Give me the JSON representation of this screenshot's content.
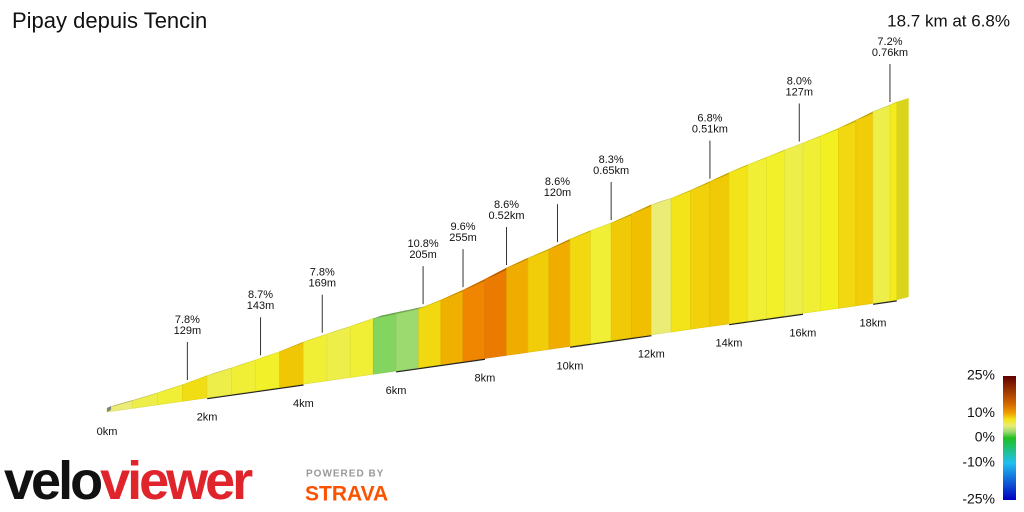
{
  "title": "Pipay depuis Tencin",
  "summary": "18.7 km at 6.8%",
  "chart_data": {
    "type": "profile",
    "distance_km": [
      0,
      0.5,
      1,
      1.5,
      2,
      2.5,
      3,
      3.5,
      4,
      4.5,
      5,
      5.5,
      6,
      6.5,
      7,
      7.5,
      8,
      8.5,
      9,
      9.5,
      10,
      10.5,
      11,
      11.5,
      12,
      12.5,
      13,
      13.5,
      14,
      14.5,
      15,
      15.5,
      16,
      16.5,
      17,
      17.5,
      18,
      18.5,
      18.7
    ],
    "grades": [
      5,
      6,
      6.5,
      7.8,
      6,
      6.5,
      6.8,
      8.7,
      6.5,
      6,
      6.5,
      2,
      2.5,
      8,
      9.5,
      10.8,
      11.5,
      9.6,
      8.5,
      9.6,
      8,
      6.5,
      8.6,
      9,
      5,
      7.5,
      8.3,
      8.6,
      7.5,
      6.5,
      6.8,
      6,
      6.5,
      7,
      8,
      8.5,
      6,
      7.2
    ],
    "xticks": [
      {
        "value": 0,
        "label": "0km"
      },
      {
        "value": 2,
        "label": "2km"
      },
      {
        "value": 4,
        "label": "4km"
      },
      {
        "value": 6,
        "label": "6km"
      },
      {
        "value": 8,
        "label": "8km"
      },
      {
        "value": 10,
        "label": "10km"
      },
      {
        "value": 12,
        "label": "12km"
      },
      {
        "value": 14,
        "label": "14km"
      },
      {
        "value": 16,
        "label": "16km"
      },
      {
        "value": 18,
        "label": "18km"
      }
    ],
    "annotations": [
      {
        "km": 1.6,
        "grade": "7.8%",
        "length": "129m"
      },
      {
        "km": 3.1,
        "grade": "8.7%",
        "length": "143m"
      },
      {
        "km": 4.4,
        "grade": "7.8%",
        "length": "169m"
      },
      {
        "km": 6.6,
        "grade": "10.8%",
        "length": "205m"
      },
      {
        "km": 7.5,
        "grade": "9.6%",
        "length": "255m"
      },
      {
        "km": 8.5,
        "grade": "8.6%",
        "length": "0.52km"
      },
      {
        "km": 9.7,
        "grade": "8.6%",
        "length": "120m"
      },
      {
        "km": 11.0,
        "grade": "8.3%",
        "length": "0.65km"
      },
      {
        "km": 13.5,
        "grade": "6.8%",
        "length": "0.51km"
      },
      {
        "km": 15.9,
        "grade": "8.0%",
        "length": "127m"
      },
      {
        "km": 18.5,
        "grade": "7.2%",
        "length": "0.76km"
      }
    ],
    "color_stops": [
      {
        "grade": -25,
        "color": "#0000c0"
      },
      {
        "grade": -10,
        "color": "#20c0f0"
      },
      {
        "grade": 0,
        "color": "#20c020"
      },
      {
        "grade": 4,
        "color": "#e6eaa0"
      },
      {
        "grade": 7,
        "color": "#f2f020"
      },
      {
        "grade": 9,
        "color": "#f0c000"
      },
      {
        "grade": 11,
        "color": "#f08000"
      },
      {
        "grade": 25,
        "color": "#600000"
      }
    ],
    "legend_ticks": [
      {
        "value": 25,
        "label": "25%"
      },
      {
        "value": 10,
        "label": "10%"
      },
      {
        "value": 0,
        "label": "0%"
      },
      {
        "value": -10,
        "label": "-10%"
      },
      {
        "value": -25,
        "label": "-25%"
      }
    ]
  },
  "branding": {
    "velo": "velo",
    "viewer": "viewer",
    "powered_by": "POWERED BY",
    "strava": "STRAVA"
  }
}
